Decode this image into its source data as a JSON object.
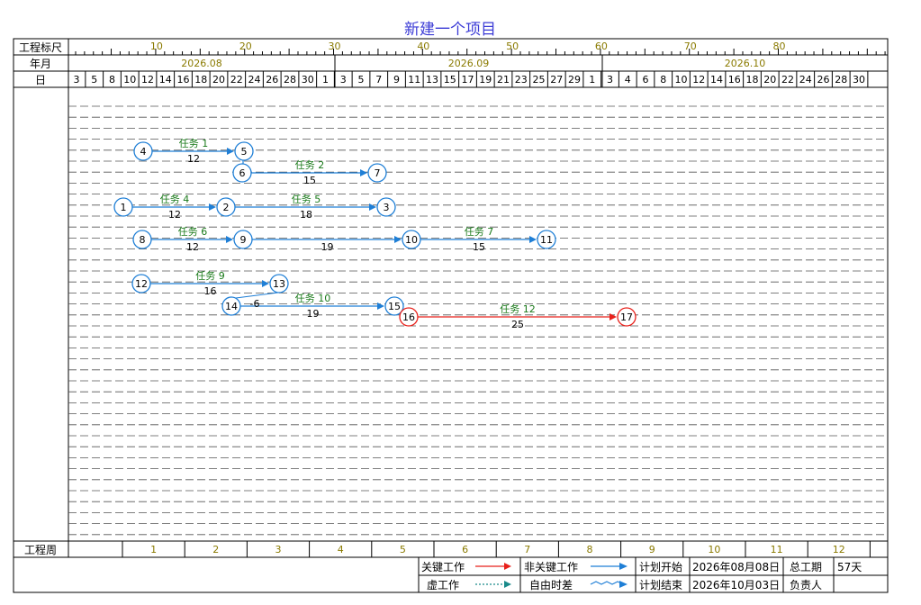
{
  "title": "新建一个项目",
  "row_labels": {
    "scale": "工程标尺",
    "year_month": "年月",
    "day": "日",
    "week": "工程周"
  },
  "scale_ticks": [
    "10",
    "20",
    "30",
    "40",
    "50",
    "60",
    "70",
    "80"
  ],
  "months": [
    "2026.08",
    "2026.09",
    "2026.10"
  ],
  "days": [
    "3",
    "5",
    "8",
    "10",
    "12",
    "14",
    "16",
    "18",
    "20",
    "22",
    "24",
    "26",
    "28",
    "30",
    "1",
    "3",
    "5",
    "7",
    "9",
    "11",
    "13",
    "15",
    "17",
    "19",
    "21",
    "23",
    "25",
    "27",
    "29",
    "1",
    "3",
    "4",
    "6",
    "8",
    "10",
    "12",
    "14",
    "16",
    "18",
    "20",
    "22",
    "24",
    "26",
    "28",
    "30"
  ],
  "weeks": [
    "1",
    "2",
    "3",
    "4",
    "5",
    "6",
    "7",
    "8",
    "9",
    "10",
    "11",
    "12"
  ],
  "network": {
    "nodes": [
      {
        "id": "1"
      },
      {
        "id": "2"
      },
      {
        "id": "3"
      },
      {
        "id": "4"
      },
      {
        "id": "5"
      },
      {
        "id": "6"
      },
      {
        "id": "7"
      },
      {
        "id": "8"
      },
      {
        "id": "9"
      },
      {
        "id": "10"
      },
      {
        "id": "11"
      },
      {
        "id": "12"
      },
      {
        "id": "13"
      },
      {
        "id": "14"
      },
      {
        "id": "15"
      },
      {
        "id": "16",
        "critical": true
      },
      {
        "id": "17",
        "critical": true
      }
    ],
    "tasks": [
      {
        "name": "任务 1",
        "from": "4",
        "to": "5",
        "duration": "12"
      },
      {
        "name": "任务 2",
        "from": "6",
        "to": "7",
        "duration": "15"
      },
      {
        "name": "任务 4",
        "from": "1",
        "to": "2",
        "duration": "12"
      },
      {
        "name": "任务 5",
        "from": "2",
        "to": "3",
        "duration": "18"
      },
      {
        "name": "任务 6",
        "from": "8",
        "to": "9",
        "duration": "12"
      },
      {
        "name": "",
        "from": "9",
        "to": "10",
        "duration": "19"
      },
      {
        "name": "任务 7",
        "from": "10",
        "to": "11",
        "duration": "15"
      },
      {
        "name": "任务 9",
        "from": "12",
        "to": "13",
        "duration": "16"
      },
      {
        "name": "任务 10",
        "from": "14",
        "to": "15",
        "duration": "19"
      },
      {
        "name": "任务 12",
        "from": "16",
        "to": "17",
        "duration": "25",
        "critical": true
      }
    ],
    "extra_labels": [
      "-6"
    ]
  },
  "legend": {
    "critical": "关键工作",
    "noncritical": "非关键工作",
    "dummy": "虚工作",
    "free_float": "自由时差",
    "plan_start_label": "计划开始",
    "plan_start": "2026年08月08日",
    "plan_end_label": "计划结束",
    "plan_end": "2026年10月03日",
    "total_label": "总工期",
    "total": "57天",
    "owner_label": "负责人",
    "owner": ""
  },
  "colors": {
    "title": "#3b3bd6",
    "critical": "#e8201a",
    "noncritical": "#1f7fd6",
    "dummy": "#1a8a8a",
    "task_label": "#1a7a1a",
    "header_text": "#8a7a00"
  }
}
